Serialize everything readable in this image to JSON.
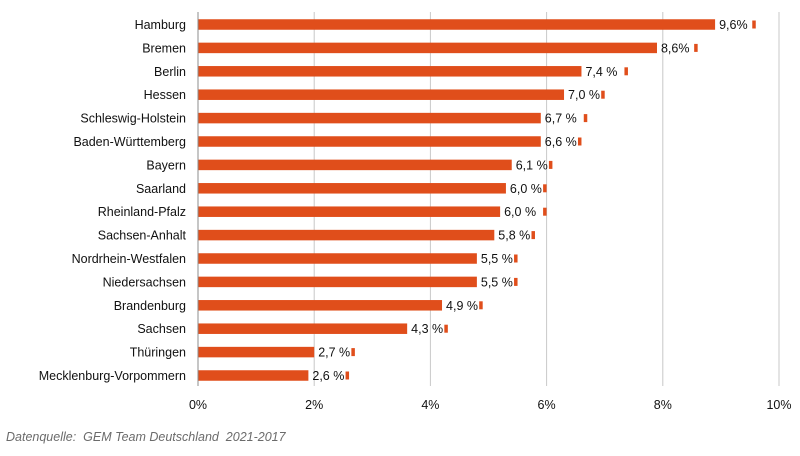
{
  "chart_data": {
    "type": "bar",
    "orientation": "horizontal",
    "categories": [
      "Hamburg",
      "Bremen",
      "Berlin",
      "Hessen",
      "Schleswig-Holstein",
      "Baden-Württemberg",
      "Bayern",
      "Saarland",
      "Rheinland-Pfalz",
      "Sachsen-Anhalt",
      "Nordrhein-Westfalen",
      "Niedersachsen",
      "Brandenburg",
      "Sachsen",
      "Thüringen",
      "Mecklenburg-Vorpommern"
    ],
    "values": [
      8.9,
      7.9,
      6.6,
      6.3,
      5.9,
      5.9,
      5.4,
      5.3,
      5.2,
      5.1,
      4.8,
      4.8,
      4.2,
      3.6,
      2.0,
      1.9
    ],
    "secondary_values": [
      9.6,
      8.6,
      7.4,
      7.0,
      6.7,
      6.6,
      6.1,
      6.0,
      6.0,
      5.8,
      5.5,
      5.5,
      4.9,
      4.3,
      2.7,
      2.6
    ],
    "data_labels": [
      "9,6%",
      "8,6%",
      "7,4 %",
      "7,0 %",
      "6,7 %",
      "6,6 %",
      "6,1 %",
      "6,0 %",
      "6,0 %",
      "5,8 %",
      "5,5 %",
      "5,5 %",
      "4,9 %",
      "4,3 %",
      "2,7 %",
      "2,6 %"
    ],
    "xlim": [
      0,
      10
    ],
    "x_ticks": [
      0,
      2,
      4,
      6,
      8,
      10
    ],
    "x_tick_labels": [
      "0%",
      "2%",
      "4%",
      "6%",
      "8%",
      "10%"
    ],
    "grid": true,
    "bar_color": "#E04E1B"
  },
  "source_note": "Datenquelle:  GEM Team Deutschland  2021-2017"
}
